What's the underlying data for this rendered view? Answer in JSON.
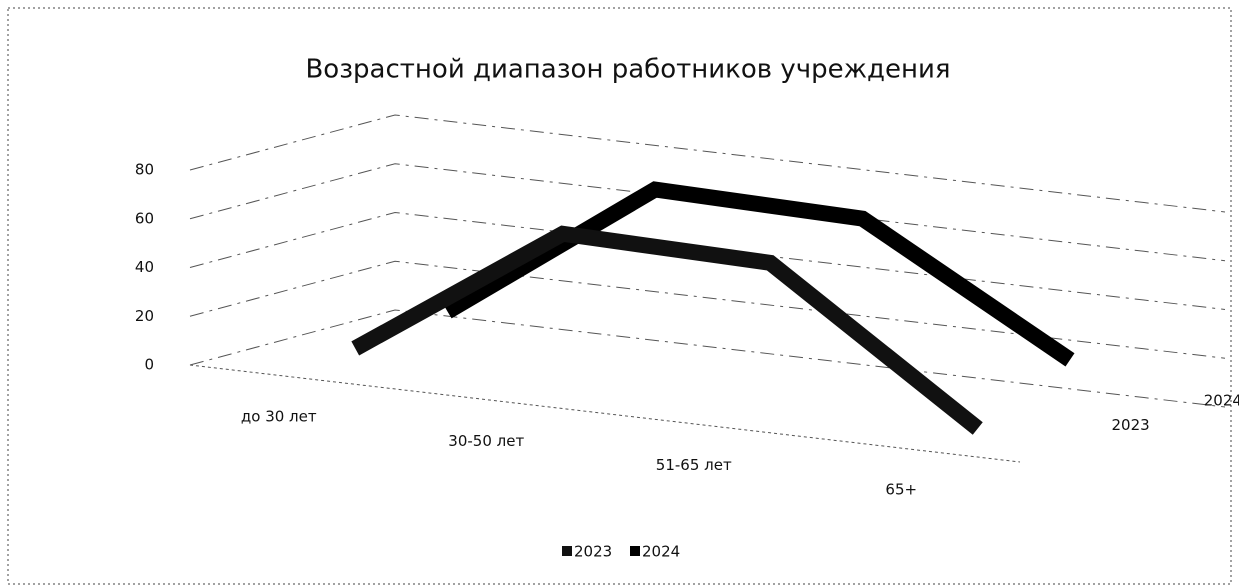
{
  "chart_data": {
    "type": "line3d",
    "title": "Возрастной диапазон работников учреждения",
    "categories": [
      "до 30 лет",
      "30-50 лет",
      "51-65 лет",
      "65+"
    ],
    "series": [
      {
        "name": "2023",
        "color": "#111111",
        "values": [
          5,
          62,
          60,
          2
        ]
      },
      {
        "name": "2024",
        "color": "#000000",
        "values": [
          10,
          70,
          68,
          20
        ]
      }
    ],
    "ylim": [
      0,
      80
    ],
    "yticks": [
      0,
      20,
      40,
      60,
      80
    ],
    "grid": true,
    "legend": "bottom"
  }
}
